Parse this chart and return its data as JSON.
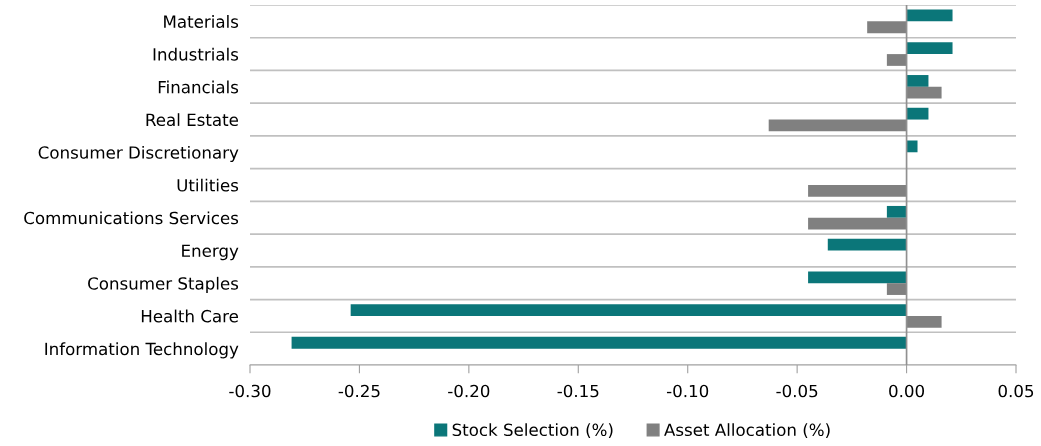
{
  "chart_data": {
    "type": "bar",
    "orientation": "horizontal",
    "categories": [
      "Materials",
      "Industrials",
      "Financials",
      "Real Estate",
      "Consumer Discretionary",
      "Utilities",
      "Communications Services",
      "Energy",
      "Consumer Staples",
      "Health Care",
      "Information Technology"
    ],
    "series": [
      {
        "name": "Stock Selection (%)",
        "color": "#0b7679",
        "values": [
          0.021,
          0.021,
          0.01,
          0.01,
          0.005,
          0,
          -0.009,
          -0.036,
          -0.045,
          -0.254,
          -0.281
        ]
      },
      {
        "name": "Asset Allocation (%)",
        "color": "#808080",
        "values": [
          -0.018,
          -0.009,
          0.016,
          -0.063,
          0,
          -0.045,
          -0.045,
          0,
          -0.009,
          0.016,
          0
        ]
      }
    ],
    "xlim": [
      -0.3,
      0.05
    ],
    "xticks": [
      {
        "value": -0.3,
        "label": "-0.30"
      },
      {
        "value": -0.25,
        "label": "-0.25"
      },
      {
        "value": -0.2,
        "label": "-0.20"
      },
      {
        "value": -0.15,
        "label": "-0.15"
      },
      {
        "value": -0.1,
        "label": "-0.10"
      },
      {
        "value": -0.05,
        "label": "-0.05"
      },
      {
        "value": 0,
        "label": "0.00"
      },
      {
        "value": 0.05,
        "label": "0.05"
      }
    ],
    "grid": "y",
    "legend": "bottom"
  }
}
